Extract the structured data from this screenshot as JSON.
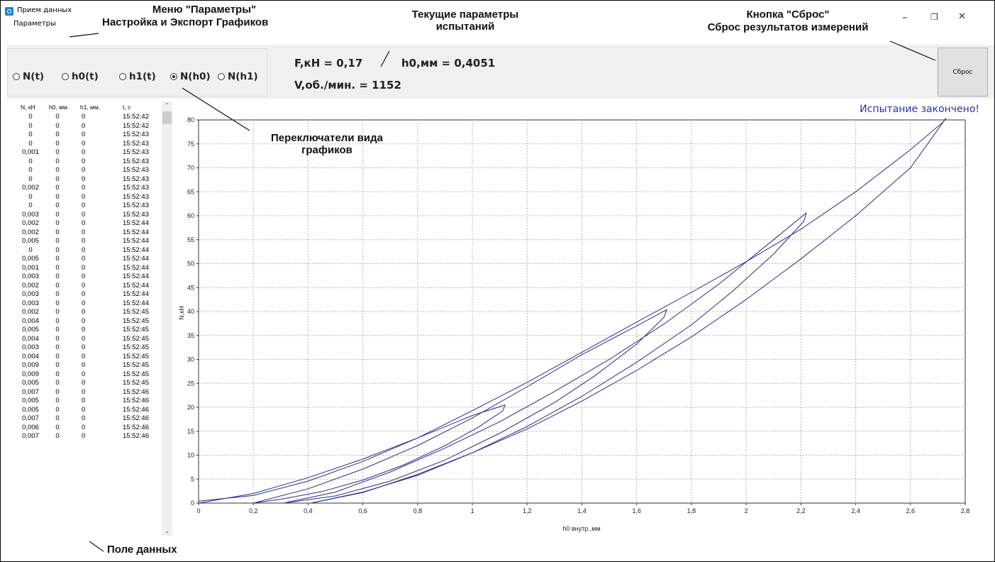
{
  "window": {
    "title": "Прием данных",
    "minimize": "–",
    "restore": "❐",
    "close": "✕"
  },
  "menu": {
    "parameters": "Параметры"
  },
  "radios": [
    {
      "label": "N(t)",
      "checked": false
    },
    {
      "label": "h0(t)",
      "checked": false
    },
    {
      "label": "h1(t)",
      "checked": false
    },
    {
      "label": "N(h0)",
      "checked": true
    },
    {
      "label": "N(h1)",
      "checked": false
    }
  ],
  "params": {
    "force": "F,кН = 0,17",
    "h0": "h0,мм = 0,4051",
    "speed": "V,об./мин. = 1152"
  },
  "reset_button": "Сброс",
  "status": "Испытание закончено!",
  "table": {
    "headers": [
      "N, кН",
      "h0, мм.",
      "h1, мм.",
      "t, с"
    ],
    "rows": [
      [
        "0",
        "0",
        "0",
        "15:52:42"
      ],
      [
        "0",
        "0",
        "0",
        "15:52:42"
      ],
      [
        "0",
        "0",
        "0",
        "15:52:43"
      ],
      [
        "0",
        "0",
        "0",
        "15:52:43"
      ],
      [
        "0,001",
        "0",
        "0",
        "15:52:43"
      ],
      [
        "0",
        "0",
        "0",
        "15:52:43"
      ],
      [
        "0",
        "0",
        "0",
        "15:52:43"
      ],
      [
        "0",
        "0",
        "0",
        "15:52:43"
      ],
      [
        "0,002",
        "0",
        "0",
        "15:52:43"
      ],
      [
        "0",
        "0",
        "0",
        "15:52:43"
      ],
      [
        "0",
        "0",
        "0",
        "15:52:43"
      ],
      [
        "0,003",
        "0",
        "0",
        "15:52:43"
      ],
      [
        "0,002",
        "0",
        "0",
        "15:52:44"
      ],
      [
        "0,002",
        "0",
        "0",
        "15:52:44"
      ],
      [
        "0,005",
        "0",
        "0",
        "15:52:44"
      ],
      [
        "0",
        "0",
        "0",
        "15:52:44"
      ],
      [
        "0,005",
        "0",
        "0",
        "15:52:44"
      ],
      [
        "0,001",
        "0",
        "0",
        "15:52:44"
      ],
      [
        "0,003",
        "0",
        "0",
        "15:52:44"
      ],
      [
        "0,002",
        "0",
        "0",
        "15:52:44"
      ],
      [
        "0,003",
        "0",
        "0",
        "15:52:44"
      ],
      [
        "0,003",
        "0",
        "0",
        "15:52:44"
      ],
      [
        "0,002",
        "0",
        "0",
        "15:52:45"
      ],
      [
        "0,004",
        "0",
        "0",
        "15:52:45"
      ],
      [
        "0,005",
        "0",
        "0",
        "15:52:45"
      ],
      [
        "0,004",
        "0",
        "0",
        "15:52:45"
      ],
      [
        "0,003",
        "0",
        "0",
        "15:52:45"
      ],
      [
        "0,004",
        "0",
        "0",
        "15:52:45"
      ],
      [
        "0,009",
        "0",
        "0",
        "15:52:45"
      ],
      [
        "0,009",
        "0",
        "0",
        "15:52:45"
      ],
      [
        "0,005",
        "0",
        "0",
        "15:52:45"
      ],
      [
        "0,007",
        "0",
        "0",
        "15:52:46"
      ],
      [
        "0,005",
        "0",
        "0",
        "15:52:46"
      ],
      [
        "0,005",
        "0",
        "0",
        "15:52:46"
      ],
      [
        "0,007",
        "0",
        "0",
        "15:52:46"
      ],
      [
        "0,006",
        "0",
        "0",
        "15:52:46"
      ],
      [
        "0,007",
        "0",
        "0",
        "15:52:46"
      ]
    ]
  },
  "annotations": {
    "menu_title": "Меню \"Параметры\"",
    "menu_desc": "Настройка и Экспорт Графиков",
    "current_params_1": "Текущие параметры",
    "current_params_2": "испытаний",
    "reset_title": "Кнопка \"Сброс\"",
    "reset_desc": "Сброс результатов измерений",
    "switch_1": "Переключатели вида",
    "switch_2": "графиков",
    "data_field": "Поле данных"
  },
  "chart_data": {
    "type": "line",
    "xlabel": "h0 внутр.,мм",
    "ylabel": "N,кН",
    "xlim": [
      0,
      2.8
    ],
    "ylim": [
      0,
      80
    ],
    "xticks": [
      0,
      0.2,
      0.4,
      0.6,
      0.8,
      1,
      1.2,
      1.4,
      1.6,
      1.8,
      2,
      2.2,
      2.4,
      2.6,
      2.8
    ],
    "xtick_labels": [
      "0",
      "0,2",
      "0,4",
      "0,6",
      "0,8",
      "1",
      "1,2",
      "1,4",
      "1,6",
      "1,8",
      "2",
      "2,2",
      "2,4",
      "2,6",
      "2,8"
    ],
    "yticks": [
      0,
      5,
      10,
      15,
      20,
      25,
      30,
      35,
      40,
      45,
      50,
      55,
      60,
      65,
      70,
      75,
      80
    ],
    "grid": true,
    "line_color": "#2a2a8e",
    "series": [
      {
        "x": [
          0,
          0.2,
          0.4,
          0.6,
          0.8,
          1.0,
          1.12
        ],
        "y": [
          0,
          2,
          5.3,
          9.2,
          13.6,
          18.3,
          20.5
        ]
      },
      {
        "x": [
          1.12,
          1.11,
          1.02,
          0.9,
          0.75,
          0.6,
          0.45,
          0.3,
          0.2
        ],
        "y": [
          20.5,
          19.2,
          15.8,
          12.0,
          8.0,
          4.8,
          2.4,
          0.8,
          0
        ]
      },
      {
        "x": [
          0.2,
          0.4,
          0.6,
          0.8,
          1.0,
          1.2,
          1.4,
          1.6,
          1.71
        ],
        "y": [
          0,
          3.0,
          7.1,
          12.0,
          17.8,
          24.3,
          31.0,
          37.0,
          40.4
        ]
      },
      {
        "x": [
          1.71,
          1.7,
          1.6,
          1.45,
          1.3,
          1.1,
          0.9,
          0.7,
          0.5,
          0.31
        ],
        "y": [
          40.4,
          38.8,
          33.2,
          26.7,
          21.0,
          14.6,
          9.0,
          4.6,
          1.5,
          0
        ]
      },
      {
        "x": [
          0.31,
          0.5,
          0.7,
          0.9,
          1.1,
          1.3,
          1.5,
          1.7,
          1.9,
          2.1,
          2.22
        ],
        "y": [
          0,
          2.3,
          6.5,
          11.5,
          17.0,
          23.3,
          30.0,
          37.4,
          45.7,
          55.0,
          60.6
        ]
      },
      {
        "x": [
          2.22,
          2.21,
          2.1,
          1.95,
          1.8,
          1.6,
          1.4,
          1.2,
          1.0,
          0.8,
          0.6,
          0.41
        ],
        "y": [
          60.6,
          58.8,
          52.0,
          44.2,
          37.2,
          29.4,
          22.3,
          16.0,
          10.5,
          5.8,
          2.3,
          0
        ]
      },
      {
        "x": [
          0.41,
          0.6,
          0.8,
          1.0,
          1.2,
          1.4,
          1.6,
          1.8,
          2.0,
          2.2,
          2.4,
          2.6,
          2.73
        ],
        "y": [
          0,
          2.2,
          6.0,
          10.5,
          15.5,
          21.3,
          27.7,
          34.7,
          42.5,
          51.0,
          60.0,
          70.0,
          80.4
        ]
      },
      {
        "x": [
          2.73,
          2.72,
          2.6,
          2.4,
          2.2,
          2.0,
          1.8,
          1.6,
          1.4,
          1.2,
          1.0,
          0.8,
          0.6,
          0.4,
          0.2,
          0
        ],
        "y": [
          80.4,
          79.6,
          73.8,
          65.0,
          57.2,
          50.4,
          44.0,
          37.8,
          31.5,
          25.2,
          19.3,
          13.6,
          8.7,
          4.6,
          1.6,
          0.4
        ]
      }
    ]
  }
}
